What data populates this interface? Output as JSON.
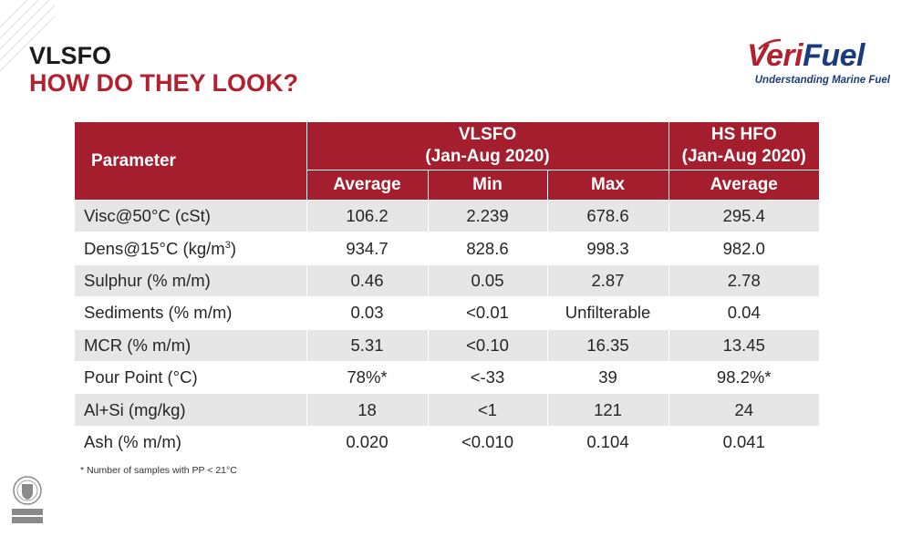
{
  "slide": {
    "title": "VLSFO",
    "subtitle": "HOW DO THEY LOOK?",
    "footnote": "* Number of samples with PP < 21°C"
  },
  "logo": {
    "word_part1": "Veri",
    "word_part2": "Fuel",
    "tagline": "Understanding Marine Fuel",
    "colors": {
      "red": "#b3202f",
      "blue": "#1b3c7a"
    }
  },
  "badge": {
    "icon": "bureau-veritas-seal-icon",
    "text": "BUREAU VERITAS"
  },
  "table": {
    "header": {
      "parameter": "Parameter",
      "group1_line1": "VLSFO",
      "group1_line2": "(Jan-Aug 2020)",
      "group2_line1": "HS HFO",
      "group2_line2": "(Jan-Aug 2020)",
      "sub": [
        "Average",
        "Min",
        "Max",
        "Average"
      ]
    },
    "rows": [
      {
        "param": "Visc@50°C (cSt)",
        "values": [
          "106.2",
          "2.239",
          "678.6",
          "295.4"
        ]
      },
      {
        "param_prefix": "Dens@15°C (kg/m",
        "param_sup": "3",
        "param_suffix": ")",
        "values": [
          "934.7",
          "828.6",
          "998.3",
          "982.0"
        ]
      },
      {
        "param": "Sulphur (% m/m)",
        "values": [
          "0.46",
          "0.05",
          "2.87",
          "2.78"
        ]
      },
      {
        "param": "Sediments (% m/m)",
        "values": [
          "0.03",
          "<0.01",
          "Unfilterable",
          "0.04"
        ]
      },
      {
        "param": "MCR (% m/m)",
        "values": [
          "5.31",
          "<0.10",
          "16.35",
          "13.45"
        ]
      },
      {
        "param": "Pour Point (°C)",
        "values": [
          "78%*",
          "<-33",
          "39",
          "98.2%*"
        ]
      },
      {
        "param": "Al+Si (mg/kg)",
        "values": [
          "18",
          "<1",
          "121",
          "24"
        ]
      },
      {
        "param": "Ash (% m/m)",
        "values": [
          "0.020",
          "<0.010",
          "0.104",
          "0.041"
        ]
      }
    ],
    "colors": {
      "header": "#a51e2d",
      "shade": "#e6e6e6",
      "title_accent": "#b3202f"
    }
  }
}
